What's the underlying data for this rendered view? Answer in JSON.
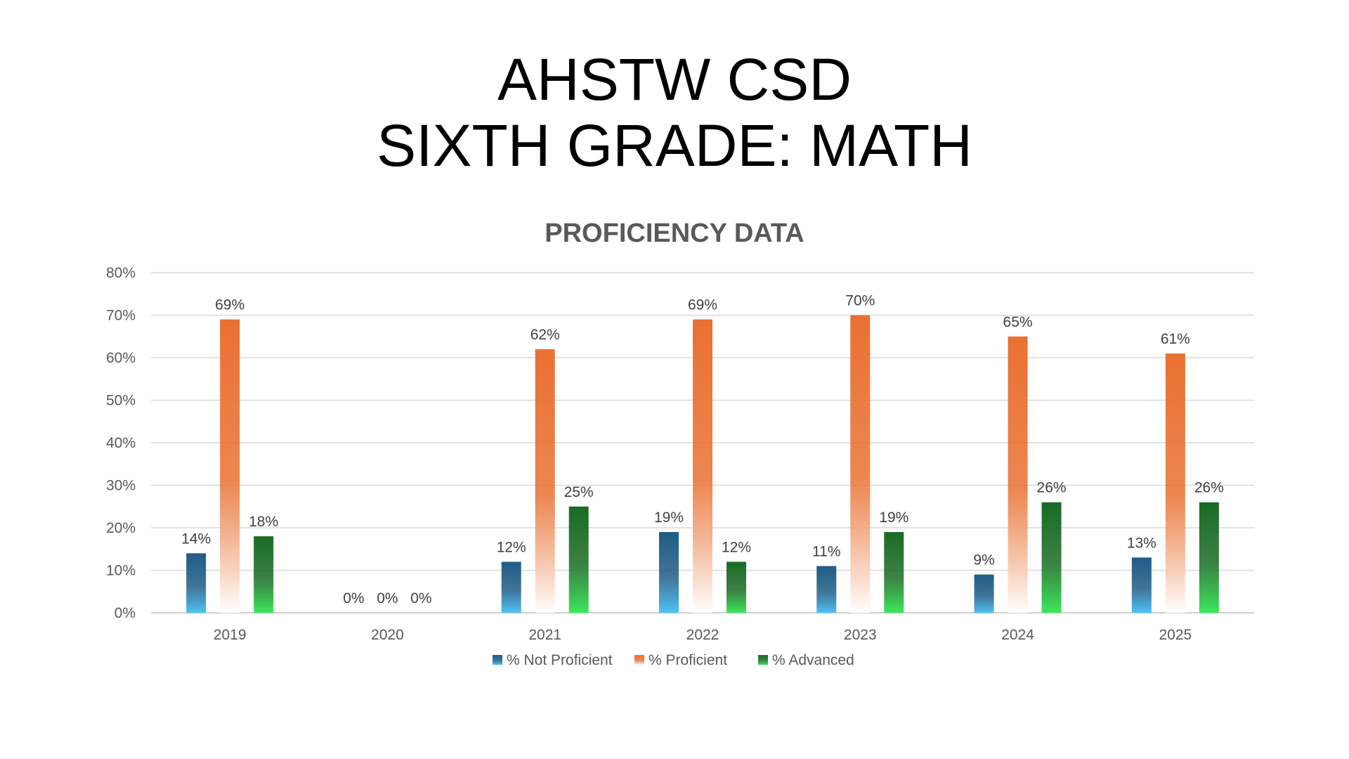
{
  "slide": {
    "title_line1": "AHSTW CSD",
    "title_line2": "SIXTH GRADE: MATH"
  },
  "chart_data": {
    "type": "bar",
    "title": "PROFICIENCY DATA",
    "xlabel": "",
    "ylabel": "",
    "categories": [
      "2019",
      "2020",
      "2021",
      "2022",
      "2023",
      "2024",
      "2025"
    ],
    "series": [
      {
        "name": "% Not Proficient",
        "values": [
          14,
          0,
          12,
          19,
          11,
          9,
          13
        ],
        "color_top": "#1f5c85",
        "color_bottom": "#4fc3f7"
      },
      {
        "name": "% Proficient",
        "values": [
          69,
          0,
          62,
          69,
          70,
          65,
          61
        ],
        "color_top": "#e97132",
        "color_bottom": "#ffffff"
      },
      {
        "name": "% Advanced",
        "values": [
          18,
          0,
          25,
          12,
          19,
          26,
          26
        ],
        "color_top": "#196b24",
        "color_bottom": "#3ee85c"
      }
    ],
    "ylim": [
      0,
      80
    ],
    "yticks": [
      0,
      10,
      20,
      30,
      40,
      50,
      60,
      70,
      80
    ],
    "value_suffix": "%",
    "grid": true,
    "legend_position": "bottom"
  }
}
